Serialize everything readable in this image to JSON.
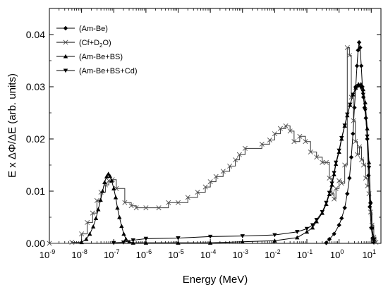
{
  "chart_data": {
    "type": "line",
    "xlabel": "Energy (MeV)",
    "ylabel": "E x ΔΦ/ΔE (arb. units)",
    "xscale": "log",
    "xlim": [
      1e-09,
      20
    ],
    "ylim": [
      0,
      0.045
    ],
    "x_ticks": [
      {
        "value": 1e-09,
        "base": "10",
        "exp": "-9"
      },
      {
        "value": 1e-08,
        "base": "10",
        "exp": "-8"
      },
      {
        "value": 1e-07,
        "base": "10",
        "exp": "-7"
      },
      {
        "value": 1e-06,
        "base": "10",
        "exp": "-6"
      },
      {
        "value": 1e-05,
        "base": "10",
        "exp": "-5"
      },
      {
        "value": 0.0001,
        "base": "10",
        "exp": "-4"
      },
      {
        "value": 0.001,
        "base": "10",
        "exp": "-3"
      },
      {
        "value": 0.01,
        "base": "10",
        "exp": "-2"
      },
      {
        "value": 0.1,
        "base": "10",
        "exp": "-1"
      },
      {
        "value": 1,
        "base": "10",
        "exp": "0"
      },
      {
        "value": 10,
        "base": "10",
        "exp": "1"
      }
    ],
    "y_ticks": [
      {
        "value": 0,
        "label": "0.00"
      },
      {
        "value": 0.01,
        "label": "0.01"
      },
      {
        "value": 0.02,
        "label": "0.02"
      },
      {
        "value": 0.03,
        "label": "0.03"
      },
      {
        "value": 0.04,
        "label": "0.04"
      }
    ],
    "legend_position": "top-left",
    "series": [
      {
        "name_parts": [
          {
            "t": "(Am-Be)"
          }
        ],
        "marker": "diamond",
        "style": "line",
        "points": [
          [
            0.4,
            0.0001
          ],
          [
            0.5,
            0.0008
          ],
          [
            0.7,
            0.0018
          ],
          [
            1.0,
            0.0035
          ],
          [
            1.2,
            0.0048
          ],
          [
            1.5,
            0.0068
          ],
          [
            1.8,
            0.0095
          ],
          [
            2.1,
            0.0125
          ],
          [
            2.4,
            0.0165
          ],
          [
            2.7,
            0.021
          ],
          [
            3.0,
            0.026
          ],
          [
            3.3,
            0.03
          ],
          [
            3.6,
            0.034
          ],
          [
            3.9,
            0.037
          ],
          [
            4.2,
            0.0385
          ],
          [
            4.5,
            0.0375
          ],
          [
            4.9,
            0.034
          ],
          [
            5.3,
            0.03
          ],
          [
            5.7,
            0.028
          ],
          [
            6.2,
            0.026
          ],
          [
            6.8,
            0.024
          ],
          [
            7.5,
            0.02
          ],
          [
            8.2,
            0.013
          ],
          [
            9.0,
            0.007
          ],
          [
            10.0,
            0.003
          ],
          [
            11.0,
            0.001
          ],
          [
            12.0,
            0.0002
          ]
        ]
      },
      {
        "name_parts": [
          {
            "t": "(Cf+D"
          },
          {
            "t": "2",
            "sub": true
          },
          {
            "t": "O)"
          }
        ],
        "marker": "x",
        "style": "step",
        "points": [
          [
            1e-09,
            0
          ],
          [
            5e-09,
            0.0002
          ],
          [
            1e-08,
            0.0018
          ],
          [
            1.5e-08,
            0.004
          ],
          [
            2.2e-08,
            0.0058
          ],
          [
            3e-08,
            0.0082
          ],
          [
            4e-08,
            0.0098
          ],
          [
            5.5e-08,
            0.0112
          ],
          [
            7e-08,
            0.012
          ],
          [
            9e-08,
            0.0122
          ],
          [
            1.2e-07,
            0.0105
          ],
          [
            2.2e-07,
            0.0078
          ],
          [
            3.5e-07,
            0.0072
          ],
          [
            5e-07,
            0.0068
          ],
          [
            1e-06,
            0.0068
          ],
          [
            2.5e-06,
            0.0068
          ],
          [
            5e-06,
            0.0078
          ],
          [
            1e-05,
            0.0078
          ],
          [
            2e-05,
            0.0088
          ],
          [
            4e-05,
            0.0098
          ],
          [
            7e-05,
            0.0108
          ],
          [
            0.0001,
            0.0118
          ],
          [
            0.00015,
            0.0128
          ],
          [
            0.00025,
            0.0138
          ],
          [
            0.0004,
            0.0148
          ],
          [
            0.0006,
            0.016
          ],
          [
            0.0008,
            0.017
          ],
          [
            0.0012,
            0.0182
          ],
          [
            0.004,
            0.019
          ],
          [
            0.007,
            0.0198
          ],
          [
            0.01,
            0.021
          ],
          [
            0.015,
            0.022
          ],
          [
            0.022,
            0.0225
          ],
          [
            0.03,
            0.0215
          ],
          [
            0.04,
            0.0195
          ],
          [
            0.06,
            0.0205
          ],
          [
            0.09,
            0.0195
          ],
          [
            0.13,
            0.0175
          ],
          [
            0.2,
            0.0165
          ],
          [
            0.3,
            0.0155
          ],
          [
            0.4,
            0.0155
          ],
          [
            0.5,
            0.0125
          ],
          [
            0.6,
            0.0095
          ],
          [
            0.7,
            0.0085
          ],
          [
            0.8,
            0.0105
          ],
          [
            1.0,
            0.012
          ],
          [
            1.2,
            0.0115
          ],
          [
            1.5,
            0.015
          ],
          [
            1.8,
            0.0375
          ],
          [
            2.1,
            0.036
          ],
          [
            2.4,
            0.028
          ],
          [
            2.8,
            0.0235
          ],
          [
            3.2,
            0.0195
          ],
          [
            3.7,
            0.017
          ],
          [
            4.3,
            0.0185
          ],
          [
            5.0,
            0.016
          ],
          [
            5.8,
            0.015
          ],
          [
            6.7,
            0.0125
          ],
          [
            7.6,
            0.011
          ],
          [
            8.5,
            0.0095
          ],
          [
            9.5,
            0.006
          ],
          [
            10.5,
            0.0035
          ],
          [
            12.0,
            0.0012
          ],
          [
            14.0,
            0.0002
          ]
        ]
      },
      {
        "name_parts": [
          {
            "t": "(Am-Be+BS)"
          }
        ],
        "marker": "triangle-up",
        "style": "line",
        "points": [
          [
            1e-08,
            0.0002
          ],
          [
            1.4e-08,
            0.0008
          ],
          [
            1.8e-08,
            0.0018
          ],
          [
            2.3e-08,
            0.0032
          ],
          [
            2.8e-08,
            0.0048
          ],
          [
            3.3e-08,
            0.0065
          ],
          [
            3.9e-08,
            0.0083
          ],
          [
            4.5e-08,
            0.01
          ],
          [
            5.2e-08,
            0.0117
          ],
          [
            6e-08,
            0.0128
          ],
          [
            6.8e-08,
            0.0133
          ],
          [
            7.6e-08,
            0.0129
          ],
          [
            8.6e-08,
            0.012
          ],
          [
            1e-07,
            0.0105
          ],
          [
            1.15e-07,
            0.0088
          ],
          [
            1.3e-07,
            0.0068
          ],
          [
            1.5e-07,
            0.005
          ],
          [
            1.75e-07,
            0.0033
          ],
          [
            2.05e-07,
            0.0018
          ],
          [
            2.4e-07,
            0.0008
          ],
          [
            3e-07,
            0.0003
          ],
          [
            4e-07,
            0.0001
          ],
          [
            1e-06,
            0.0001
          ],
          [
            1e-05,
            0.0001
          ],
          [
            0.0001,
            0.0001
          ],
          [
            0.001,
            0.0003
          ],
          [
            0.01,
            0.0005
          ],
          [
            0.05,
            0.0011
          ],
          [
            0.1,
            0.0022
          ],
          [
            0.15,
            0.003
          ],
          [
            0.2,
            0.0042
          ],
          [
            0.3,
            0.0058
          ],
          [
            0.4,
            0.0075
          ],
          [
            0.5,
            0.0094
          ],
          [
            0.6,
            0.0112
          ],
          [
            0.7,
            0.0132
          ],
          [
            0.8,
            0.0152
          ],
          [
            1.0,
            0.0175
          ],
          [
            1.2,
            0.02
          ],
          [
            1.5,
            0.0225
          ],
          [
            1.8,
            0.0245
          ],
          [
            2.2,
            0.0265
          ],
          [
            2.7,
            0.0285
          ],
          [
            3.3,
            0.0298
          ],
          [
            4.0,
            0.0305
          ],
          [
            4.8,
            0.0305
          ],
          [
            5.6,
            0.0295
          ],
          [
            6.5,
            0.027
          ],
          [
            7.5,
            0.022
          ],
          [
            8.5,
            0.0155
          ],
          [
            9.5,
            0.008
          ],
          [
            10.5,
            0.003
          ],
          [
            12.0,
            0.0008
          ]
        ]
      },
      {
        "name_parts": [
          {
            "t": "(Am-Be+BS+Cd)"
          }
        ],
        "marker": "triangle-down",
        "style": "line",
        "points": [
          [
            1e-07,
            0.0001
          ],
          [
            2e-07,
            0.0002
          ],
          [
            4e-07,
            0.0006
          ],
          [
            1e-06,
            0.0009
          ],
          [
            1e-05,
            0.001
          ],
          [
            0.0001,
            0.0013
          ],
          [
            0.001,
            0.0014
          ],
          [
            0.01,
            0.0016
          ],
          [
            0.05,
            0.0022
          ],
          [
            0.1,
            0.0028
          ],
          [
            0.15,
            0.0035
          ],
          [
            0.2,
            0.0045
          ],
          [
            0.3,
            0.006
          ],
          [
            0.4,
            0.0078
          ],
          [
            0.5,
            0.0097
          ],
          [
            0.6,
            0.0115
          ],
          [
            0.7,
            0.0135
          ],
          [
            0.8,
            0.0155
          ],
          [
            1.0,
            0.0178
          ],
          [
            1.2,
            0.0202
          ],
          [
            1.5,
            0.0226
          ],
          [
            1.8,
            0.0247
          ],
          [
            2.2,
            0.0266
          ],
          [
            2.7,
            0.0285
          ],
          [
            3.3,
            0.0296
          ],
          [
            4.0,
            0.0302
          ],
          [
            4.8,
            0.0298
          ],
          [
            5.6,
            0.0285
          ],
          [
            6.5,
            0.0255
          ],
          [
            7.5,
            0.0205
          ],
          [
            8.5,
            0.0145
          ],
          [
            9.5,
            0.0075
          ],
          [
            10.5,
            0.0028
          ],
          [
            12.0,
            0.0007
          ]
        ]
      }
    ]
  }
}
